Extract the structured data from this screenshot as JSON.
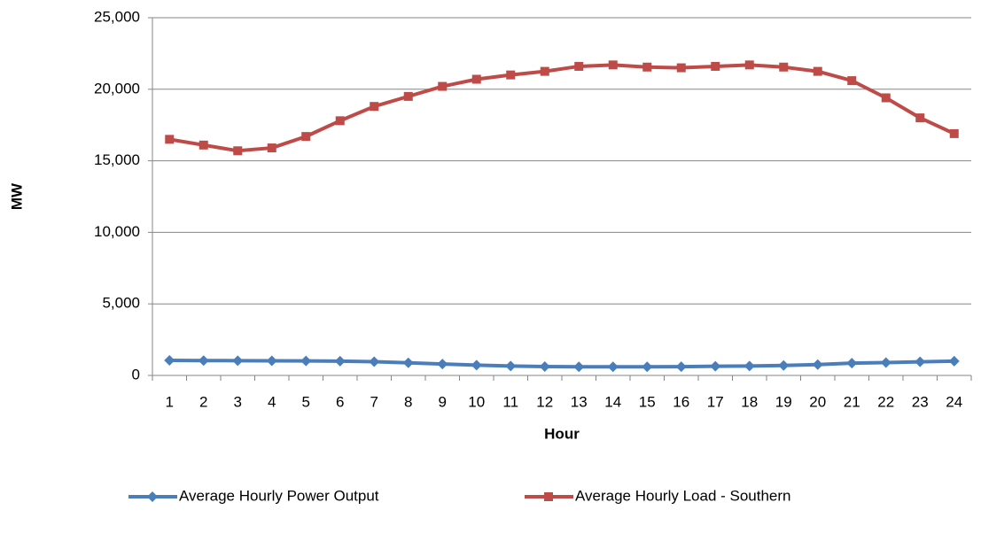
{
  "chart_data": {
    "type": "line",
    "x_label": "Hour",
    "y_label": "MW",
    "categories": [
      "1",
      "2",
      "3",
      "4",
      "5",
      "6",
      "7",
      "8",
      "9",
      "10",
      "11",
      "12",
      "13",
      "14",
      "15",
      "16",
      "17",
      "18",
      "19",
      "20",
      "21",
      "22",
      "23",
      "24"
    ],
    "series": [
      {
        "name": "Average Hourly Power Output",
        "color": "#4a7ebb",
        "marker": "diamond",
        "values": [
          1050,
          1040,
          1030,
          1020,
          1010,
          1000,
          960,
          880,
          800,
          720,
          660,
          620,
          600,
          600,
          600,
          610,
          640,
          660,
          700,
          760,
          860,
          900,
          950,
          1000
        ]
      },
      {
        "name": "Average Hourly Load - Southern",
        "color": "#be4b48",
        "marker": "square",
        "values": [
          16500,
          16100,
          15700,
          15900,
          16700,
          17800,
          18800,
          19500,
          20200,
          20700,
          21000,
          21250,
          21600,
          21700,
          21550,
          21500,
          21600,
          21700,
          21550,
          21250,
          20600,
          19400,
          18000,
          16900
        ]
      }
    ],
    "ylim": [
      0,
      25000
    ],
    "yticks": [
      0,
      {
        "value": 5000,
        "label": "5,000"
      },
      {
        "value": 10000,
        "label": "10,000"
      },
      {
        "value": 15000,
        "label": "15,000"
      },
      {
        "value": 20000,
        "label": "20,000"
      },
      {
        "value": 25000,
        "label": "25,000"
      }
    ],
    "grid": true,
    "legend": "bottom"
  }
}
